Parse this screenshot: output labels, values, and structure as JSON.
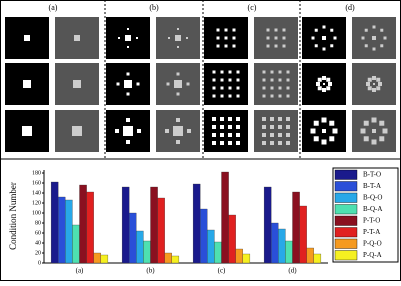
{
  "panels": [
    "(a)",
    "(b)",
    "(c)",
    "(d)"
  ],
  "chart_data": {
    "type": "bar",
    "ylabel": "Condition Number",
    "categories": [
      "(a)",
      "(b)",
      "(c)",
      "(d)"
    ],
    "ylim": [
      0,
      180
    ],
    "yticks": [
      0,
      20,
      40,
      60,
      80,
      100,
      120,
      140,
      160,
      180
    ],
    "legend": "right",
    "series": [
      {
        "name": "B-T-O",
        "color": "#1a1a8c",
        "values": [
          162,
          152,
          158,
          152
        ]
      },
      {
        "name": "B-T-A",
        "color": "#2a4fd8",
        "values": [
          132,
          100,
          108,
          80
        ]
      },
      {
        "name": "B-Q-O",
        "color": "#28a8e8",
        "values": [
          126,
          64,
          66,
          68
        ]
      },
      {
        "name": "B-Q-A",
        "color": "#4ee0b0",
        "values": [
          76,
          44,
          42,
          44
        ]
      },
      {
        "name": "P-T-O",
        "color": "#8a1020",
        "values": [
          156,
          152,
          182,
          142
        ]
      },
      {
        "name": "P-T-A",
        "color": "#e02020",
        "values": [
          142,
          130,
          96,
          114
        ]
      },
      {
        "name": "P-Q-O",
        "color": "#f59a20",
        "values": [
          20,
          20,
          28,
          30
        ]
      },
      {
        "name": "P-Q-A",
        "color": "#f5f020",
        "values": [
          16,
          14,
          18,
          18
        ]
      }
    ]
  }
}
